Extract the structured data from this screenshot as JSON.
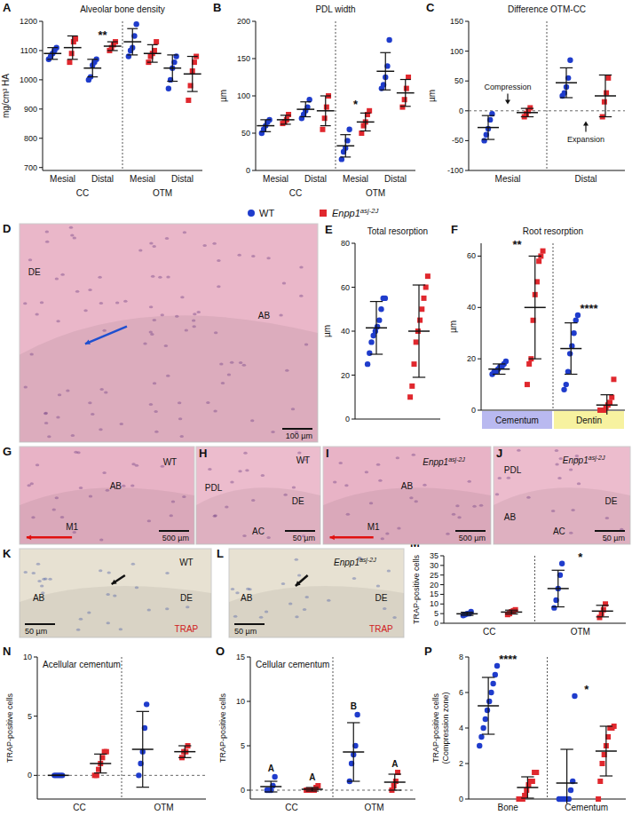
{
  "chart_data": [
    {
      "type": "dot",
      "panel": "A",
      "title": "Alveolar bone density",
      "ylabel": "mg/cm³ HA",
      "groups": [
        "CC",
        "OTM"
      ],
      "categories": [
        "Mesial",
        "Distal",
        "Mesial",
        "Distal"
      ],
      "ylim": [
        690,
        1200
      ],
      "yticks": [
        700,
        800,
        900,
        1000,
        1100,
        1200
      ],
      "series": [
        {
          "name": "WT",
          "color": "#1f3ccc",
          "marker": "circle",
          "values": [
            [
              1070,
              1080,
              1090,
              1100,
              1110
            ],
            [
              1000,
              1010,
              1050,
              1060,
              1070
            ],
            [
              1080,
              1100,
              1110,
              1150,
              1190
            ],
            [
              970,
              1000,
              1040,
              1060,
              1080
            ]
          ],
          "mean": [
            1090,
            1040,
            1130,
            1040
          ],
          "sd": [
            20,
            30,
            45,
            45
          ]
        },
        {
          "name": "Enpp1",
          "name_sup": "asj-2J",
          "color": "#e0282e",
          "marker": "square",
          "values": [
            [
              1060,
              1090,
              1130,
              1140
            ],
            [
              1100,
              1110,
              1120,
              1130
            ],
            [
              1060,
              1080,
              1090,
              1100,
              1130
            ],
            [
              930,
              980,
              1030,
              1060,
              1080
            ]
          ],
          "mean": [
            1110,
            1115,
            1090,
            1020
          ],
          "sd": [
            40,
            15,
            30,
            60
          ]
        }
      ],
      "annotations": [
        {
          "text": "**",
          "category": 1
        }
      ]
    },
    {
      "type": "dot",
      "panel": "B",
      "title": "PDL width",
      "ylabel": "µm",
      "groups": [
        "CC",
        "OTM"
      ],
      "categories": [
        "Mesial",
        "Distal",
        "Mesial",
        "Distal"
      ],
      "ylim": [
        0,
        200
      ],
      "yticks": [
        0,
        50,
        100,
        150,
        200
      ],
      "series": [
        {
          "color": "#1f3ccc",
          "marker": "circle",
          "values": [
            [
              50,
              55,
              60,
              65,
              68
            ],
            [
              70,
              75,
              80,
              85,
              95
            ],
            [
              15,
              25,
              30,
              40,
              55
            ],
            [
              110,
              115,
              125,
              140,
              175
            ]
          ],
          "mean": [
            60,
            82,
            33,
            133
          ],
          "sd": [
            8,
            10,
            15,
            25
          ]
        },
        {
          "color": "#e0282e",
          "marker": "square",
          "values": [
            [
              63,
              65,
              68,
              75
            ],
            [
              55,
              70,
              85,
              100
            ],
            [
              50,
              60,
              65,
              75,
              80
            ],
            [
              85,
              95,
              110,
              125
            ]
          ],
          "mean": [
            68,
            80,
            65,
            104
          ],
          "sd": [
            6,
            20,
            12,
            18
          ]
        }
      ],
      "annotations": [
        {
          "text": "*",
          "category": 2
        }
      ]
    },
    {
      "type": "dot",
      "panel": "C",
      "title": "Difference OTM-CC",
      "ylabel": "µm",
      "categories": [
        "Mesial",
        "Distal"
      ],
      "ylim": [
        -100,
        150
      ],
      "yticks": [
        -100,
        -50,
        0,
        50,
        100,
        150
      ],
      "series": [
        {
          "color": "#1f3ccc",
          "marker": "circle",
          "values": [
            [
              -50,
              -40,
              -30,
              -15,
              -5
            ],
            [
              25,
              30,
              40,
              55,
              85
            ]
          ],
          "mean": [
            -28,
            47
          ],
          "sd": [
            20,
            25
          ]
        },
        {
          "color": "#e0282e",
          "marker": "square",
          "values": [
            [
              -10,
              -5,
              0,
              5
            ],
            [
              -10,
              15,
              30,
              55
            ]
          ],
          "mean": [
            -3,
            25
          ],
          "sd": [
            7,
            35
          ]
        }
      ],
      "annotations": [
        {
          "text": "Compression",
          "category": 0,
          "arrow": "down"
        },
        {
          "text": "Expansion",
          "category": 1,
          "arrow": "up"
        }
      ]
    },
    {
      "type": "dot",
      "panel": "E",
      "title": "Total resorption",
      "ylabel": "µm",
      "categories": [
        null
      ],
      "ylim": [
        0,
        80
      ],
      "yticks": [
        0,
        20,
        40,
        60,
        80
      ],
      "series": [
        {
          "color": "#1f3ccc",
          "marker": "circle",
          "values": [
            [
              25,
              30,
              35,
              38,
              40,
              42,
              45,
              50,
              55,
              55
            ]
          ],
          "mean": [
            41.5
          ],
          "sd": [
            12
          ]
        },
        {
          "color": "#e0282e",
          "marker": "square",
          "values": [
            [
              10,
              15,
              25,
              35,
              40,
              45,
              50,
              55,
              60,
              65
            ]
          ],
          "mean": [
            40
          ],
          "sd": [
            21
          ]
        }
      ]
    },
    {
      "type": "dot",
      "panel": "F",
      "title": "Root resorption",
      "ylabel": "µm",
      "categories": [
        "Cementum",
        "Dentin"
      ],
      "category_colors": [
        "#b9b9f0",
        "#f7f2a0"
      ],
      "ylim": [
        0,
        65
      ],
      "yticks": [
        0,
        20,
        40,
        60
      ],
      "series": [
        {
          "color": "#1f3ccc",
          "marker": "circle",
          "values": [
            [
              14,
              15,
              15,
              16,
              17,
              17,
              18,
              19
            ],
            [
              8,
              10,
              15,
              22,
              25,
              30,
              35,
              37
            ]
          ],
          "mean": [
            16,
            24
          ],
          "sd": [
            2,
            10
          ]
        },
        {
          "color": "#e0282e",
          "marker": "square",
          "values": [
            [
              10,
              18,
              20,
              35,
              45,
              50,
              58,
              60,
              62
            ],
            [
              0,
              0,
              0,
              1,
              2,
              3,
              5,
              12
            ]
          ],
          "mean": [
            40,
            2
          ],
          "sd": [
            20,
            4
          ]
        }
      ],
      "annotations": [
        {
          "text": "**",
          "category": 0
        },
        {
          "text": "****",
          "category": 1
        }
      ]
    },
    {
      "type": "dot",
      "panel": "M",
      "ylabel": "TRAP-positive cells",
      "categories": [
        "CC",
        "OTM"
      ],
      "ylim": [
        0,
        35
      ],
      "yticks": [
        0,
        5,
        10,
        15,
        20,
        25,
        30,
        35
      ],
      "series": [
        {
          "color": "#1f3ccc",
          "marker": "circle",
          "values": [
            [
              4,
              4.5,
              5,
              5,
              6
            ],
            [
              8,
              12,
              18,
              25,
              31
            ]
          ],
          "mean": [
            4.9,
            18
          ],
          "sd": [
            0.8,
            9.5
          ]
        },
        {
          "color": "#e0282e",
          "marker": "square",
          "values": [
            [
              4.5,
              5,
              6,
              6.5,
              7
            ],
            [
              3,
              5,
              7,
              10
            ]
          ],
          "mean": [
            5.8,
            6.3
          ],
          "sd": [
            1,
            3
          ]
        }
      ],
      "annotations": [
        {
          "text": "*",
          "category": 1
        }
      ]
    },
    {
      "type": "dot",
      "panel": "N",
      "title": "Acellular cementum",
      "ylabel": "TRAP-positive cells",
      "categories": [
        "CC",
        "OTM"
      ],
      "ylim": [
        -2,
        10
      ],
      "yticks": [
        0,
        5,
        10
      ],
      "series": [
        {
          "color": "#1f3ccc",
          "marker": "circle",
          "values": [
            [
              0,
              0,
              0,
              0,
              0
            ],
            [
              0,
              1,
              2,
              4,
              6
            ]
          ],
          "mean": [
            0,
            2.2
          ],
          "sd": [
            0,
            3.2
          ]
        },
        {
          "color": "#e0282e",
          "marker": "square",
          "values": [
            [
              0,
              0,
              0.5,
              1,
              1.5,
              2,
              2
            ],
            [
              1.5,
              2,
              2,
              2.5
            ]
          ],
          "mean": [
            1,
            2
          ],
          "sd": [
            0.8,
            0.5
          ]
        }
      ]
    },
    {
      "type": "dot",
      "panel": "O",
      "title": "Cellular cementum",
      "ylabel": "TRAP-positive cells",
      "categories": [
        "CC",
        "OTM"
      ],
      "ylim": [
        -1,
        15
      ],
      "yticks": [
        0,
        5,
        10,
        15
      ],
      "series": [
        {
          "color": "#1f3ccc",
          "marker": "circle",
          "values": [
            [
              0,
              0,
              0,
              0.5,
              1.5
            ],
            [
              1,
              3,
              4,
              5,
              8.5
            ]
          ],
          "mean": [
            0.4,
            4.3
          ],
          "sd": [
            0.6,
            3.3
          ]
        },
        {
          "color": "#e0282e",
          "marker": "square",
          "values": [
            [
              0,
              0,
              0,
              0,
              0,
              0.3,
              0.5
            ],
            [
              0,
              0.5,
              1,
              2
            ]
          ],
          "mean": [
            0.1,
            0.9
          ],
          "sd": [
            0.2,
            0.9
          ]
        }
      ],
      "annotations": [
        {
          "text": "A",
          "category": 0,
          "series": 0
        },
        {
          "text": "A",
          "category": 0,
          "series": 1
        },
        {
          "text": "B",
          "category": 1,
          "series": 0
        },
        {
          "text": "A",
          "category": 1,
          "series": 1
        }
      ]
    },
    {
      "type": "dot",
      "panel": "P",
      "ylabel": [
        "TRAP-positive cells",
        "(Compression zone)"
      ],
      "categories": [
        "Bone",
        "Cementum"
      ],
      "ylim": [
        0,
        8
      ],
      "yticks": [
        0,
        2,
        4,
        6,
        8
      ],
      "series": [
        {
          "color": "#1f3ccc",
          "marker": "circle",
          "values": [
            [
              3,
              3.5,
              4,
              4.5,
              5,
              5.5,
              6,
              6.5,
              7,
              7.5
            ],
            [
              0,
              0,
              0,
              0,
              0,
              0,
              0.5,
              1,
              5.8
            ]
          ],
          "mean": [
            5.25,
            0.9
          ],
          "sd": [
            1.6,
            1.9
          ]
        },
        {
          "color": "#e0282e",
          "marker": "square",
          "values": [
            [
              0,
              0,
              0,
              0.2,
              0.5,
              0.8,
              1,
              1,
              1.5,
              1.5
            ],
            [
              0,
              1,
              2,
              2.5,
              3,
              3.5,
              4,
              4,
              4.1
            ]
          ],
          "mean": [
            0.65,
            2.7
          ],
          "sd": [
            0.6,
            1.4
          ]
        }
      ],
      "annotations": [
        {
          "text": "****",
          "category": 0
        },
        {
          "text": "*",
          "category": 1
        }
      ]
    }
  ],
  "images": [
    {
      "panel": "D",
      "labels": [
        {
          "text": "DE"
        },
        {
          "text": "AB"
        }
      ],
      "scale_bar": "100 µm"
    },
    {
      "panel": "G",
      "labels": [
        {
          "text": "WT"
        },
        {
          "text": "AB"
        },
        {
          "text": "M1"
        }
      ],
      "scale_bar": "500 µm"
    },
    {
      "panel": "H",
      "labels": [
        {
          "text": "WT"
        },
        {
          "text": "PDL"
        },
        {
          "text": "DE"
        },
        {
          "text": "AC"
        }
      ],
      "scale_bar": "50 µm"
    },
    {
      "panel": "I",
      "labels": [
        {
          "text": "Enpp1",
          "sup": "asj-2J"
        },
        {
          "text": "AB"
        },
        {
          "text": "M1"
        }
      ],
      "scale_bar": "500 µm"
    },
    {
      "panel": "J",
      "labels": [
        {
          "text": "Enpp1",
          "sup": "asj-2J"
        },
        {
          "text": "PDL"
        },
        {
          "text": "AB"
        },
        {
          "text": "DE"
        },
        {
          "text": "AC"
        }
      ],
      "scale_bar": "50 µm"
    },
    {
      "panel": "K",
      "labels": [
        {
          "text": "WT"
        },
        {
          "text": "AB"
        },
        {
          "text": "DE"
        },
        {
          "text": "TRAP",
          "color": "#d02020"
        }
      ],
      "scale_bar": "50 µm"
    },
    {
      "panel": "L",
      "labels": [
        {
          "text": "Enpp1",
          "sup": "asj-2J"
        },
        {
          "text": "AB"
        },
        {
          "text": "DE"
        },
        {
          "text": "TRAP",
          "color": "#d02020"
        }
      ],
      "scale_bar": "50 µm"
    }
  ]
}
